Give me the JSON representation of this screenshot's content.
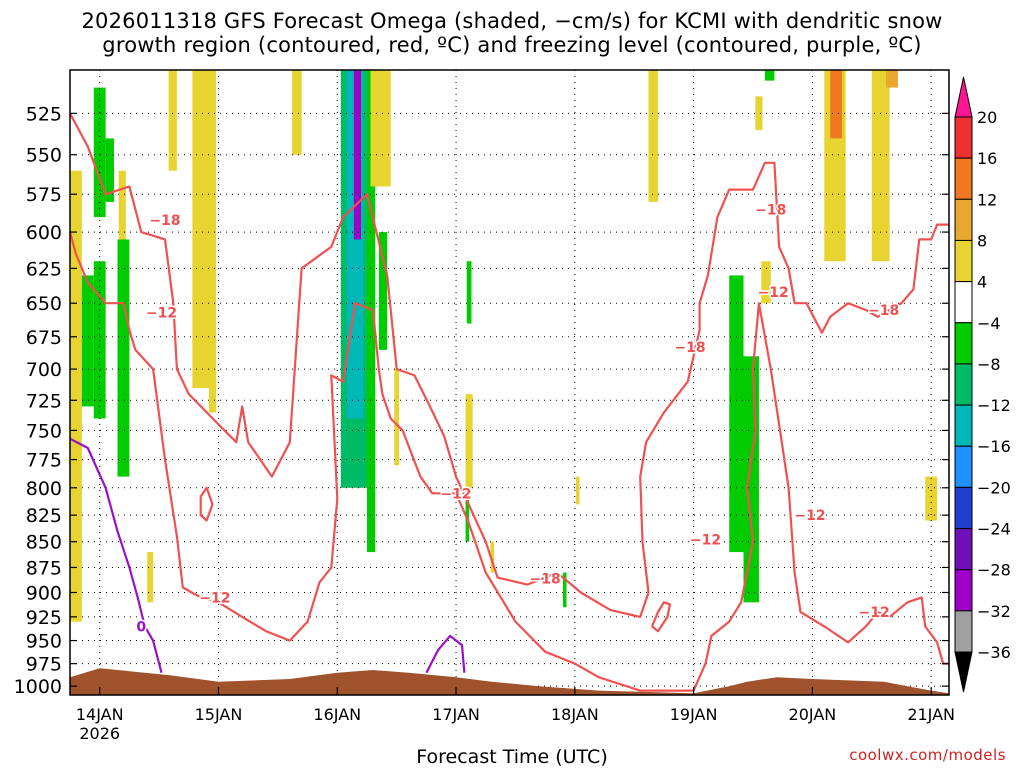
{
  "title_line1": "2026011318 GFS Forecast Omega (shaded, −cm/s) for KCMI with dendritic snow",
  "title_line2": "growth region (contoured, red, ºC) and freezing level (contoured, purple, ºC)",
  "xlabel": "Forecast Time (UTC)",
  "credit": "coolwx.com/models",
  "chart_data": {
    "type": "heatmap",
    "xlabel": "Forecast Time (UTC)",
    "ylabel": "",
    "x_ticks": [
      {
        "x": 0,
        "label": "14JAN"
      },
      {
        "x": 1,
        "label": "15JAN"
      },
      {
        "x": 2,
        "label": "16JAN"
      },
      {
        "x": 3,
        "label": "17JAN"
      },
      {
        "x": 4,
        "label": "18JAN"
      },
      {
        "x": 5,
        "label": "19JAN"
      },
      {
        "x": 6,
        "label": "20JAN"
      },
      {
        "x": 7,
        "label": "21JAN"
      }
    ],
    "x_subtitle": "2026",
    "xlim": [
      -0.25,
      7.15
    ],
    "y_ticks": [
      525,
      550,
      575,
      600,
      625,
      650,
      675,
      700,
      725,
      750,
      775,
      800,
      825,
      850,
      875,
      900,
      925,
      950,
      975,
      1000
    ],
    "ylim": [
      500,
      1010
    ],
    "y_scale": "log",
    "grid": true,
    "colorbar": {
      "labels": [
        "20",
        "16",
        "12",
        "8",
        "4",
        "−4",
        "−8",
        "−12",
        "−16",
        "−20",
        "−24",
        "−28",
        "−32",
        "−36"
      ],
      "colors": [
        "#ff1493",
        "#f03030",
        "#f07820",
        "#e8a830",
        "#e8d430",
        "#ffffff",
        "#00cc00",
        "#00bb66",
        "#00b8b8",
        "#1e90ff",
        "#1f3fd0",
        "#7010b8",
        "#a000c8",
        "#a0a0a0",
        "#000000"
      ]
    },
    "omega_shading": [
      {
        "x": [
          -0.25,
          -0.15
        ],
        "p": [
          560,
          930
        ],
        "level": "4"
      },
      {
        "x": [
          -0.15,
          -0.05
        ],
        "p": [
          630,
          730
        ],
        "level": "-4"
      },
      {
        "x": [
          -0.05,
          0.05
        ],
        "p": [
          510,
          590
        ],
        "level": "-4"
      },
      {
        "x": [
          -0.05,
          0.05
        ],
        "p": [
          620,
          740
        ],
        "level": "-4"
      },
      {
        "x": [
          0.05,
          0.12
        ],
        "p": [
          540,
          580
        ],
        "level": "-4"
      },
      {
        "x": [
          0.16,
          0.22
        ],
        "p": [
          560,
          610
        ],
        "level": "4"
      },
      {
        "x": [
          0.15,
          0.25
        ],
        "p": [
          605,
          790
        ],
        "level": "-4"
      },
      {
        "x": [
          0.4,
          0.45
        ],
        "p": [
          860,
          910
        ],
        "level": "4"
      },
      {
        "x": [
          0.58,
          0.65
        ],
        "p": [
          500,
          560
        ],
        "level": "4"
      },
      {
        "x": [
          0.78,
          0.98
        ],
        "p": [
          500,
          715
        ],
        "level": "4"
      },
      {
        "x": [
          0.92,
          0.98
        ],
        "p": [
          700,
          735
        ],
        "level": "4"
      },
      {
        "x": [
          1.62,
          1.7
        ],
        "p": [
          500,
          550
        ],
        "level": "4"
      },
      {
        "x": [
          2.03,
          2.27
        ],
        "p": [
          500,
          800
        ],
        "level": "-8"
      },
      {
        "x": [
          2.08,
          2.22
        ],
        "p": [
          500,
          740
        ],
        "level": "-12"
      },
      {
        "x": [
          2.14,
          2.2
        ],
        "p": [
          500,
          605
        ],
        "level": "-28"
      },
      {
        "x": [
          2.25,
          2.32
        ],
        "p": [
          500,
          860
        ],
        "level": "-4"
      },
      {
        "x": [
          2.28,
          2.45
        ],
        "p": [
          500,
          570
        ],
        "level": "4"
      },
      {
        "x": [
          2.35,
          2.42
        ],
        "p": [
          600,
          685
        ],
        "level": "-4"
      },
      {
        "x": [
          2.48,
          2.52
        ],
        "p": [
          700,
          780
        ],
        "level": "4"
      },
      {
        "x": [
          3.08,
          3.11
        ],
        "p": [
          800,
          850
        ],
        "level": "-4"
      },
      {
        "x": [
          3.09,
          3.13
        ],
        "p": [
          620,
          665
        ],
        "level": "-4"
      },
      {
        "x": [
          3.08,
          3.14
        ],
        "p": [
          720,
          800
        ],
        "level": "4"
      },
      {
        "x": [
          3.29,
          3.32
        ],
        "p": [
          850,
          880
        ],
        "level": "4"
      },
      {
        "x": [
          4.01,
          4.04
        ],
        "p": [
          790,
          815
        ],
        "level": "4"
      },
      {
        "x": [
          3.9,
          3.93
        ],
        "p": [
          880,
          915
        ],
        "level": "-4"
      },
      {
        "x": [
          4.62,
          4.7
        ],
        "p": [
          500,
          580
        ],
        "level": "4"
      },
      {
        "x": [
          5.3,
          5.42
        ],
        "p": [
          630,
          860
        ],
        "level": "-4"
      },
      {
        "x": [
          5.42,
          5.55
        ],
        "p": [
          690,
          910
        ],
        "level": "-4"
      },
      {
        "x": [
          5.52,
          5.58
        ],
        "p": [
          515,
          535
        ],
        "level": "4"
      },
      {
        "x": [
          5.57,
          5.65
        ],
        "p": [
          620,
          650
        ],
        "level": "4"
      },
      {
        "x": [
          6.1,
          6.28
        ],
        "p": [
          500,
          620
        ],
        "level": "4"
      },
      {
        "x": [
          6.15,
          6.25
        ],
        "p": [
          500,
          540
        ],
        "level": "12"
      },
      {
        "x": [
          6.5,
          6.65
        ],
        "p": [
          500,
          620
        ],
        "level": "4"
      },
      {
        "x": [
          6.62,
          6.72
        ],
        "p": [
          500,
          510
        ],
        "level": "8"
      },
      {
        "x": [
          6.95,
          7.05
        ],
        "p": [
          790,
          830
        ],
        "level": "4"
      },
      {
        "x": [
          5.6,
          5.68
        ],
        "p": [
          500,
          506
        ],
        "level": "-4"
      }
    ],
    "contours": [
      {
        "name": "-18",
        "color": "#f05050",
        "label_at": {
          "x": 0.55,
          "p": 592,
          "text": "−18"
        },
        "points": [
          [
            -0.25,
            525
          ],
          [
            -0.1,
            545
          ],
          [
            0.05,
            575
          ],
          [
            0.25,
            570
          ],
          [
            0.35,
            600
          ],
          [
            0.55,
            605
          ],
          [
            0.62,
            650
          ],
          [
            0.65,
            700
          ],
          [
            0.75,
            720
          ],
          [
            1.05,
            750
          ],
          [
            1.15,
            760
          ],
          [
            1.2,
            730
          ],
          [
            1.25,
            760
          ],
          [
            1.45,
            790
          ],
          [
            1.6,
            760
          ],
          [
            1.7,
            625
          ],
          [
            1.95,
            610
          ],
          [
            2.05,
            590
          ],
          [
            2.25,
            575
          ],
          [
            2.42,
            630
          ],
          [
            2.5,
            700
          ],
          [
            2.65,
            705
          ],
          [
            2.78,
            730
          ],
          [
            2.9,
            755
          ],
          [
            3.0,
            790
          ],
          [
            3.25,
            850
          ],
          [
            3.35,
            885
          ],
          [
            3.6,
            892
          ],
          [
            3.75,
            885
          ],
          [
            3.85,
            880
          ],
          [
            4.05,
            900
          ],
          [
            4.3,
            918
          ],
          [
            4.55,
            925
          ],
          [
            4.62,
            900
          ],
          [
            4.57,
            850
          ],
          [
            4.55,
            790
          ],
          [
            4.6,
            760
          ],
          [
            4.75,
            735
          ],
          [
            4.95,
            710
          ],
          [
            5.05,
            670
          ],
          [
            5.05,
            650
          ],
          [
            5.12,
            630
          ],
          [
            5.2,
            590
          ],
          [
            5.3,
            572
          ],
          [
            5.5,
            572
          ],
          [
            5.6,
            555
          ],
          [
            5.68,
            555
          ],
          [
            5.72,
            610
          ],
          [
            5.8,
            625
          ],
          [
            5.85,
            650
          ],
          [
            5.95,
            650
          ],
          [
            6.08,
            672
          ],
          [
            6.15,
            660
          ],
          [
            6.3,
            650
          ],
          [
            6.45,
            655
          ],
          [
            6.55,
            660
          ],
          [
            6.75,
            650
          ],
          [
            6.85,
            640
          ],
          [
            6.9,
            605
          ],
          [
            7.0,
            605
          ],
          [
            7.05,
            595
          ],
          [
            7.15,
            595
          ]
        ]
      },
      {
        "name": "-12",
        "color": "#f05050",
        "label_at": {
          "x": 0.97,
          "p": 905,
          "text": "−12"
        },
        "points": [
          [
            -0.25,
            600
          ],
          [
            -0.2,
            615
          ],
          [
            -0.1,
            635
          ],
          [
            0.05,
            650
          ],
          [
            0.2,
            650
          ],
          [
            0.25,
            670
          ],
          [
            0.3,
            685
          ],
          [
            0.45,
            700
          ],
          [
            0.55,
            775
          ],
          [
            0.65,
            845
          ],
          [
            0.7,
            895
          ],
          [
            0.85,
            905
          ],
          [
            1.0,
            910
          ],
          [
            1.2,
            925
          ],
          [
            1.4,
            940
          ],
          [
            1.6,
            950
          ],
          [
            1.75,
            930
          ],
          [
            1.85,
            890
          ],
          [
            1.95,
            875
          ],
          [
            2.0,
            810
          ],
          [
            1.95,
            705
          ],
          [
            2.05,
            710
          ],
          [
            2.15,
            650
          ],
          [
            2.3,
            655
          ],
          [
            2.35,
            700
          ],
          [
            2.38,
            720
          ],
          [
            2.45,
            740
          ],
          [
            2.55,
            750
          ],
          [
            2.7,
            790
          ],
          [
            2.8,
            805
          ],
          [
            3.0,
            805
          ],
          [
            3.1,
            830
          ],
          [
            3.25,
            880
          ],
          [
            3.5,
            930
          ],
          [
            3.75,
            962
          ],
          [
            4.0,
            975
          ],
          [
            4.2,
            990
          ],
          [
            4.55,
            1005
          ],
          [
            5.0,
            1005
          ],
          [
            5.1,
            975
          ],
          [
            5.15,
            945
          ],
          [
            5.3,
            930
          ],
          [
            5.4,
            910
          ],
          [
            5.45,
            880
          ],
          [
            5.5,
            850
          ],
          [
            5.45,
            800
          ],
          [
            5.52,
            750
          ],
          [
            5.5,
            700
          ],
          [
            5.55,
            650
          ],
          [
            5.65,
            700
          ],
          [
            5.8,
            800
          ],
          [
            5.85,
            880
          ],
          [
            5.9,
            920
          ],
          [
            6.1,
            935
          ],
          [
            6.3,
            952
          ],
          [
            6.45,
            935
          ],
          [
            6.55,
            920
          ],
          [
            6.65,
            925
          ],
          [
            6.8,
            910
          ],
          [
            6.92,
            905
          ],
          [
            6.95,
            935
          ],
          [
            7.05,
            952
          ],
          [
            7.1,
            975
          ],
          [
            7.15,
            975
          ]
        ]
      },
      {
        "name": "-12 b",
        "color": "#f05050",
        "label_at": {
          "x": 0.52,
          "p": 657,
          "text": "−12"
        },
        "points": [
          [
            0.85,
            808
          ],
          [
            0.9,
            800
          ],
          [
            0.95,
            815
          ],
          [
            0.9,
            830
          ],
          [
            0.85,
            825
          ],
          [
            0.85,
            808
          ]
        ]
      },
      {
        "name": "-12 c",
        "color": "#f05050",
        "label_at": {
          "x": 4.85,
          "p": 925,
          "text": ""
        },
        "points": [
          [
            4.65,
            935
          ],
          [
            4.7,
            920
          ],
          [
            4.75,
            910
          ],
          [
            4.8,
            912
          ],
          [
            4.78,
            925
          ],
          [
            4.7,
            940
          ],
          [
            4.65,
            935
          ]
        ]
      },
      {
        "name": "0",
        "color": "#9a10c8",
        "label_at": {
          "x": 0.35,
          "p": 935,
          "text": "0"
        },
        "points": [
          [
            -0.25,
            757
          ],
          [
            -0.1,
            765
          ],
          [
            0.05,
            800
          ],
          [
            0.15,
            840
          ],
          [
            0.25,
            875
          ],
          [
            0.32,
            905
          ],
          [
            0.38,
            935
          ],
          [
            0.45,
            950
          ],
          [
            0.52,
            985
          ]
        ]
      },
      {
        "name": "0 b",
        "color": "#9a10c8",
        "label_at": {
          "x": 2.8,
          "p": 960,
          "text": ""
        },
        "points": [
          [
            2.75,
            985
          ],
          [
            2.85,
            960
          ],
          [
            2.95,
            945
          ],
          [
            3.05,
            955
          ],
          [
            3.07,
            985
          ]
        ]
      }
    ],
    "contour_labels": [
      {
        "x": 5.65,
        "p": 585,
        "text": "−18"
      },
      {
        "x": 4.97,
        "p": 683,
        "text": "−18"
      },
      {
        "x": 6.6,
        "p": 655,
        "text": "−18"
      },
      {
        "x": 3.75,
        "p": 886,
        "text": "−18"
      },
      {
        "x": 5.67,
        "p": 642,
        "text": "−12"
      },
      {
        "x": 3.0,
        "p": 805,
        "text": "−12"
      },
      {
        "x": 5.1,
        "p": 848,
        "text": "−12"
      },
      {
        "x": 5.98,
        "p": 825,
        "text": "−12"
      },
      {
        "x": 6.52,
        "p": 920,
        "text": "−12"
      }
    ],
    "terrain_color": "#a0522d",
    "terrain": [
      [
        -0.25,
        990
      ],
      [
        0.0,
        980
      ],
      [
        0.6,
        988
      ],
      [
        1.0,
        995
      ],
      [
        1.6,
        992
      ],
      [
        2.0,
        985
      ],
      [
        2.3,
        982
      ],
      [
        2.6,
        985
      ],
      [
        3.0,
        990
      ],
      [
        3.3,
        995
      ],
      [
        3.7,
        1000
      ],
      [
        4.2,
        1005
      ],
      [
        5.0,
        1008
      ],
      [
        5.3,
        1000
      ],
      [
        5.45,
        995
      ],
      [
        5.7,
        990
      ],
      [
        6.0,
        992
      ],
      [
        6.6,
        995
      ],
      [
        6.8,
        1000
      ],
      [
        7.0,
        1005
      ],
      [
        7.15,
        1008
      ]
    ]
  }
}
